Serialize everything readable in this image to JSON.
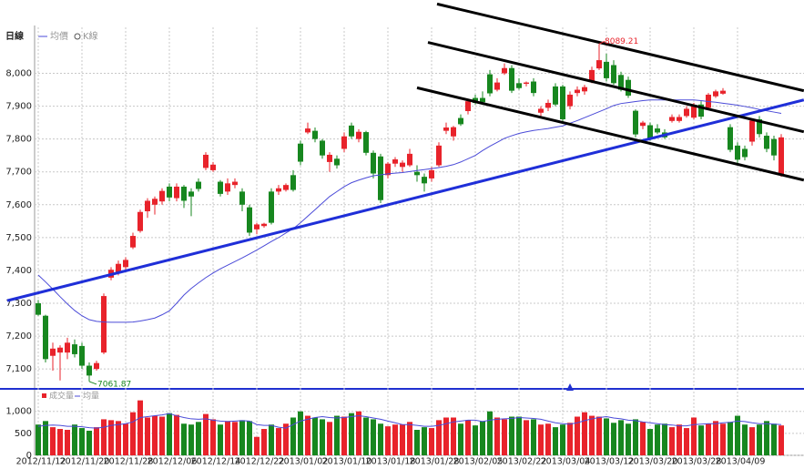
{
  "chart_data": {
    "type": "candlestick",
    "title": "日線",
    "candle_legend": "K線",
    "up_color": "#e8232b",
    "down_color": "#17871f",
    "categories": [
      "2012/11/12",
      null,
      null,
      null,
      null,
      null,
      "2012/11/20",
      null,
      null,
      null,
      null,
      null,
      "2012/11/28",
      null,
      null,
      null,
      null,
      null,
      "2012/12/06",
      null,
      null,
      null,
      null,
      null,
      "2012/12/14",
      null,
      null,
      null,
      null,
      null,
      "2012/12/22",
      null,
      null,
      null,
      null,
      null,
      "2013/01/02",
      null,
      null,
      null,
      null,
      null,
      "2013/01/10",
      null,
      null,
      null,
      null,
      null,
      "2013/01/18",
      null,
      null,
      null,
      null,
      null,
      "2013/01/28",
      null,
      null,
      null,
      null,
      null,
      "2013/02/05",
      null,
      null,
      null,
      null,
      null,
      "2013/02/22",
      null,
      null,
      null,
      null,
      null,
      "2013/03/04",
      null,
      null,
      null,
      null,
      null,
      "2013/03/12",
      null,
      null,
      null,
      null,
      null,
      "2013/03/20",
      null,
      null,
      null,
      null,
      null,
      "2013/03/28",
      null,
      null,
      null,
      null,
      null,
      "2013/04/09",
      null,
      null,
      null,
      null,
      null,
      null
    ],
    "candles": {
      "open": [
        7300,
        7262,
        7140,
        7150,
        7150,
        7175,
        7170,
        7110,
        7100,
        7150,
        7378,
        7395,
        7410,
        7470,
        7520,
        7580,
        7600,
        7610,
        7655,
        7620,
        7655,
        7640,
        7670,
        7712,
        7705,
        7670,
        7640,
        7660,
        7640,
        7592,
        7525,
        7535,
        7640,
        7640,
        7645,
        7690,
        7786,
        7820,
        7825,
        7795,
        7730,
        7740,
        7770,
        7841,
        7800,
        7821,
        7758,
        7747,
        7690,
        7725,
        7715,
        7720,
        7700,
        7685,
        7680,
        7720,
        7825,
        7808,
        7864,
        7885,
        7925,
        7925,
        7997,
        7950,
        8000,
        8016,
        7970,
        7968,
        7975,
        7880,
        7895,
        7960,
        7960,
        7900,
        7940,
        7945,
        7975,
        8015,
        8035,
        8025,
        7995,
        7980,
        7886,
        7840,
        7842,
        7832,
        7820,
        7855,
        7855,
        7870,
        7865,
        7905,
        7895,
        7930,
        7938,
        7836,
        7780,
        7770,
        7792,
        7860,
        7810,
        7800,
        7690
      ],
      "high": [
        7310,
        7265,
        7180,
        7172,
        7195,
        7190,
        7180,
        7120,
        7125,
        7330,
        7410,
        7430,
        7440,
        7515,
        7585,
        7620,
        7625,
        7650,
        7665,
        7665,
        7660,
        7650,
        7680,
        7760,
        7730,
        7675,
        7680,
        7680,
        7650,
        7600,
        7545,
        7545,
        7650,
        7660,
        7665,
        7705,
        7795,
        7850,
        7835,
        7800,
        7760,
        7750,
        7820,
        7850,
        7830,
        7825,
        7765,
        7755,
        7730,
        7745,
        7735,
        7770,
        7720,
        7695,
        7715,
        7790,
        7850,
        7840,
        7875,
        7920,
        7935,
        7945,
        8010,
        7985,
        8030,
        8025,
        7985,
        7975,
        7985,
        7900,
        7920,
        7970,
        7965,
        7945,
        7960,
        7965,
        8020,
        8089.21,
        8060,
        8040,
        8005,
        7990,
        7890,
        7855,
        7850,
        7845,
        7830,
        7875,
        7875,
        7900,
        7910,
        7915,
        7940,
        7950,
        7955,
        7845,
        7790,
        7780,
        7860,
        7870,
        7820,
        7810,
        7815
      ],
      "low": [
        7262,
        7120,
        7095,
        7065,
        7130,
        7135,
        7100,
        7061.87,
        7095,
        7145,
        7370,
        7385,
        7400,
        7465,
        7515,
        7560,
        7570,
        7600,
        7610,
        7610,
        7590,
        7565,
        7640,
        7705,
        7700,
        7625,
        7630,
        7650,
        7580,
        7505,
        7510,
        7530,
        7540,
        7630,
        7640,
        7640,
        7720,
        7815,
        7790,
        7740,
        7700,
        7710,
        7760,
        7800,
        7790,
        7750,
        7680,
        7605,
        7680,
        7715,
        7700,
        7715,
        7670,
        7640,
        7670,
        7715,
        7815,
        7795,
        7840,
        7875,
        7905,
        7905,
        7930,
        7945,
        7995,
        7940,
        7950,
        7960,
        7930,
        7870,
        7885,
        7900,
        7850,
        7890,
        7930,
        7935,
        7970,
        8010,
        7975,
        7965,
        7945,
        7925,
        7805,
        7830,
        7795,
        7815,
        7800,
        7850,
        7850,
        7865,
        7860,
        7860,
        7890,
        7925,
        7935,
        7760,
        7720,
        7735,
        7780,
        7805,
        7760,
        7735,
        7685
      ],
      "close": [
        7265,
        7130,
        7162,
        7165,
        7180,
        7145,
        7110,
        7080,
        7118,
        7322,
        7402,
        7420,
        7432,
        7505,
        7578,
        7612,
        7618,
        7642,
        7622,
        7655,
        7612,
        7625,
        7648,
        7752,
        7722,
        7633,
        7665,
        7670,
        7600,
        7515,
        7540,
        7542,
        7545,
        7650,
        7660,
        7645,
        7731,
        7832,
        7800,
        7750,
        7752,
        7720,
        7808,
        7808,
        7822,
        7758,
        7695,
        7614,
        7725,
        7738,
        7728,
        7755,
        7690,
        7665,
        7705,
        7780,
        7835,
        7836,
        7845,
        7915,
        7910,
        7912,
        7939,
        7972,
        8016,
        7947,
        7955,
        7972,
        7940,
        7892,
        7910,
        7905,
        7860,
        7935,
        7950,
        7958,
        8010,
        8040,
        7985,
        7970,
        7950,
        7932,
        7814,
        7850,
        7800,
        7820,
        7805,
        7867,
        7867,
        7892,
        7900,
        7868,
        7935,
        7945,
        7947,
        7767,
        7737,
        7745,
        7856,
        7815,
        7770,
        7750,
        7805
      ]
    },
    "ma": {
      "name": "均價",
      "color": "#4b4bd8",
      "values": [
        7386,
        7365,
        7343,
        7320,
        7298,
        7278,
        7262,
        7250,
        7245,
        7243,
        7242,
        7242,
        7242,
        7243,
        7246,
        7250,
        7255,
        7265,
        7277,
        7300,
        7325,
        7345,
        7362,
        7378,
        7392,
        7405,
        7416,
        7427,
        7438,
        7450,
        7462,
        7475,
        7488,
        7500,
        7514,
        7527,
        7545,
        7565,
        7585,
        7605,
        7625,
        7640,
        7655,
        7667,
        7675,
        7682,
        7688,
        7691,
        7694,
        7696,
        7698,
        7701,
        7704,
        7707,
        7710,
        7713,
        7717,
        7722,
        7730,
        7740,
        7750,
        7765,
        7778,
        7790,
        7802,
        7810,
        7817,
        7822,
        7826,
        7829,
        7832,
        7836,
        7840,
        7848,
        7856,
        7865,
        7874,
        7883,
        7892,
        7902,
        7908,
        7911,
        7914,
        7917,
        7919,
        7919,
        7919,
        7919,
        7919,
        7919,
        7919,
        7917,
        7914,
        7912,
        7909,
        7906,
        7903,
        7899,
        7895,
        7890,
        7886,
        7882,
        7878
      ]
    },
    "ylim": [
      7045,
      8140
    ],
    "yticks": [
      {
        "value": 7100,
        "label": "7,100"
      },
      {
        "value": 7200,
        "label": "7,200"
      },
      {
        "value": 7300,
        "label": "7,300"
      },
      {
        "value": 7400,
        "label": "7,400"
      },
      {
        "value": 7500,
        "label": "7,500"
      },
      {
        "value": 7600,
        "label": "7,600"
      },
      {
        "value": 7700,
        "label": "7,700"
      },
      {
        "value": 7800,
        "label": "7,800"
      },
      {
        "value": 7900,
        "label": "7,900"
      },
      {
        "value": 8000,
        "label": "8,000"
      }
    ],
    "grid": true,
    "trendlines": [
      {
        "color": "#1f2fd8",
        "points": [
          [
            -4.25,
            7308
          ],
          [
            105.1,
            7919
          ]
        ]
      },
      {
        "color": "#000000",
        "points": [
          [
            54.75,
            8211
          ],
          [
            105.1,
            7947
          ]
        ]
      },
      {
        "color": "#000000",
        "points": [
          [
            53.5,
            8094
          ],
          [
            105.1,
            7822
          ]
        ]
      },
      {
        "color": "#000000",
        "points": [
          [
            52,
            7956
          ],
          [
            105.1,
            7675
          ]
        ]
      }
    ],
    "volume": {
      "name": "成交量",
      "values": [
        700,
        780,
        640,
        600,
        580,
        700,
        620,
        560,
        640,
        820,
        800,
        780,
        720,
        980,
        1250,
        860,
        900,
        880,
        960,
        920,
        720,
        700,
        760,
        940,
        820,
        700,
        780,
        760,
        800,
        780,
        420,
        600,
        700,
        620,
        720,
        860,
        1000,
        900,
        860,
        820,
        760,
        900,
        880,
        960,
        1000,
        860,
        820,
        720,
        660,
        700,
        700,
        760,
        580,
        640,
        620,
        800,
        860,
        860,
        720,
        800,
        680,
        780,
        1000,
        860,
        820,
        880,
        880,
        800,
        820,
        700,
        720,
        640,
        700,
        740,
        880,
        980,
        900,
        880,
        840,
        740,
        800,
        720,
        820,
        760,
        600,
        700,
        720,
        640,
        700,
        620,
        860,
        680,
        720,
        780,
        720,
        760,
        900,
        700,
        640,
        700,
        780,
        720,
        680
      ],
      "ylim": [
        0,
        1450
      ],
      "yticks": [
        0,
        500,
        {
          "value": 1000,
          "label": "1,000"
        }
      ],
      "ma": {
        "name": "均量",
        "color": "#4b4bd8",
        "values": [
          660,
          680,
          690,
          680,
          660,
          660,
          650,
          630,
          620,
          640,
          680,
          700,
          720,
          760,
          860,
          880,
          900,
          920,
          950,
          900,
          860,
          830,
          820,
          830,
          800,
          780,
          770,
          780,
          790,
          780,
          700,
          680,
          680,
          640,
          620,
          700,
          780,
          820,
          860,
          880,
          860,
          850,
          860,
          880,
          900,
          880,
          850,
          820,
          780,
          740,
          700,
          700,
          680,
          660,
          660,
          680,
          720,
          760,
          780,
          800,
          800,
          770,
          800,
          820,
          830,
          840,
          860,
          850,
          840,
          820,
          780,
          740,
          720,
          710,
          740,
          790,
          830,
          860,
          880,
          850,
          830,
          800,
          790,
          760,
          740,
          720,
          700,
          690,
          670,
          670,
          700,
          710,
          720,
          720,
          740,
          750,
          780,
          770,
          740,
          720,
          720,
          710,
          700
        ]
      }
    }
  }
}
